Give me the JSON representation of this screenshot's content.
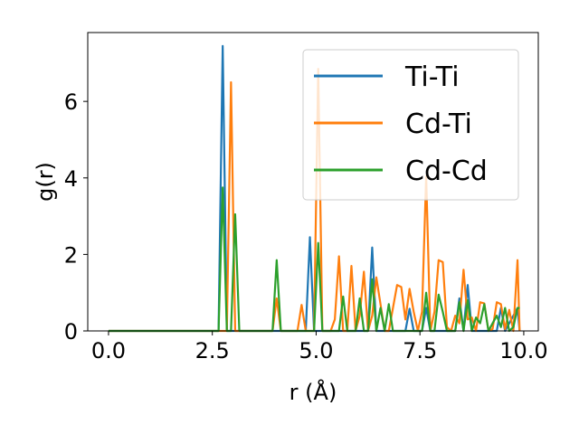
{
  "chart_data": {
    "type": "line",
    "xlabel": "r (Å)",
    "ylabel": "g(r)",
    "xlim": [
      -0.5,
      10.35
    ],
    "ylim": [
      0,
      7.8
    ],
    "xticks": [
      0.0,
      2.5,
      5.0,
      7.5,
      10.0
    ],
    "xtick_labels": [
      "0.0",
      "2.5",
      "5.0",
      "7.5",
      "10.0"
    ],
    "yticks": [
      0,
      2,
      4,
      6
    ],
    "ytick_labels": [
      "0",
      "2",
      "4",
      "6"
    ],
    "grid": false,
    "legend_position": "top-right",
    "series": [
      {
        "name": "Ti-Ti",
        "color": "#1f77b4",
        "x": [
          0.0,
          2.65,
          2.75,
          2.85,
          2.95,
          3.05,
          4.75,
          4.85,
          4.95,
          6.25,
          6.35,
          6.45,
          7.15,
          7.25,
          7.35,
          7.55,
          7.65,
          7.75,
          8.35,
          8.45,
          8.55,
          8.65,
          8.75,
          9.35,
          9.45,
          9.55,
          9.85,
          9.9
        ],
        "y": [
          0,
          0,
          7.45,
          0,
          0,
          0,
          0,
          2.45,
          0,
          0,
          2.18,
          0,
          0,
          0.58,
          0,
          0,
          0.6,
          0,
          0,
          0.85,
          0,
          1.2,
          0,
          0,
          0.6,
          0,
          0.6,
          0
        ]
      },
      {
        "name": "Cd-Ti",
        "color": "#ff7f0e",
        "x": [
          0.0,
          2.85,
          2.95,
          3.05,
          3.95,
          4.05,
          4.15,
          4.55,
          4.65,
          4.75,
          4.95,
          5.05,
          5.15,
          5.35,
          5.45,
          5.55,
          5.65,
          5.75,
          5.85,
          5.95,
          6.05,
          6.15,
          6.25,
          6.35,
          6.45,
          6.65,
          6.75,
          6.85,
          6.95,
          7.05,
          7.15,
          7.25,
          7.35,
          7.45,
          7.55,
          7.65,
          7.75,
          7.85,
          7.95,
          8.05,
          8.15,
          8.25,
          8.35,
          8.45,
          8.55,
          8.65,
          8.75,
          8.85,
          8.95,
          9.05,
          9.15,
          9.25,
          9.35,
          9.45,
          9.55,
          9.65,
          9.75,
          9.85,
          9.9
        ],
        "y": [
          0,
          0,
          6.5,
          0,
          0,
          0.85,
          0,
          0,
          0.68,
          0,
          0,
          6.85,
          0,
          0,
          0.3,
          1.95,
          0,
          0,
          1.7,
          0,
          0.4,
          1.55,
          0,
          0.4,
          1.4,
          0,
          0,
          0.6,
          1.2,
          1.15,
          0.3,
          1.1,
          0.5,
          0,
          0.5,
          4.05,
          0,
          0.5,
          1.85,
          1.8,
          0.1,
          0,
          0.4,
          0.2,
          1.6,
          0.3,
          0.35,
          0,
          0.75,
          0.72,
          0,
          0.05,
          0.75,
          0.7,
          0.05,
          0.55,
          0,
          1.85,
          0
        ]
      },
      {
        "name": "Cd-Cd",
        "color": "#2ca02c",
        "x": [
          0.0,
          2.65,
          2.75,
          2.85,
          2.95,
          3.05,
          3.15,
          3.25,
          3.95,
          4.05,
          4.15,
          4.95,
          5.05,
          5.15,
          5.55,
          5.65,
          5.75,
          5.95,
          6.05,
          6.15,
          6.25,
          6.35,
          6.45,
          6.55,
          6.65,
          6.75,
          6.85,
          6.95,
          7.55,
          7.65,
          7.75,
          7.85,
          7.95,
          8.05,
          8.15,
          8.35,
          8.45,
          8.55,
          8.65,
          8.75,
          8.85,
          8.95,
          9.05,
          9.15,
          9.25,
          9.35,
          9.45,
          9.55,
          9.65,
          9.75,
          9.85,
          9.9
        ],
        "y": [
          0,
          0,
          3.75,
          0,
          0,
          3.05,
          0,
          0,
          0,
          1.85,
          0,
          0,
          2.3,
          0,
          0,
          0.9,
          0,
          0,
          0.85,
          0,
          0,
          1.35,
          0,
          0.6,
          0,
          0.7,
          0,
          0,
          0,
          1.0,
          0,
          0,
          0.95,
          0.5,
          0,
          0,
          0.75,
          0,
          0.8,
          0,
          0.35,
          0.2,
          0.7,
          0,
          0.2,
          0.4,
          0.1,
          0.6,
          0,
          0.1,
          0.6,
          0.6
        ]
      }
    ]
  }
}
